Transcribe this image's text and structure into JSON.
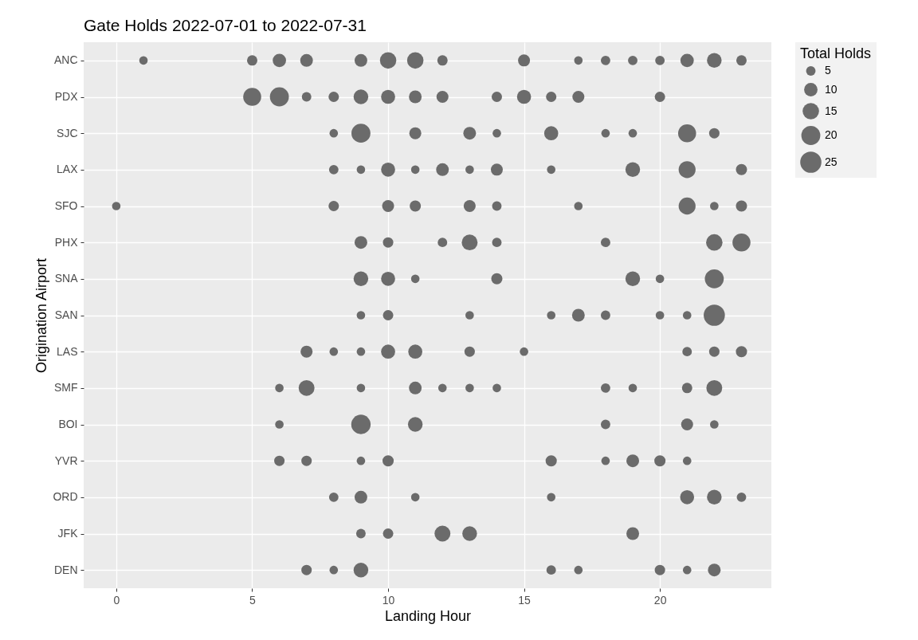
{
  "chart_data": {
    "type": "bubble",
    "orientation": "horizontal",
    "title": "Gate Holds 2022-07-01 to 2022-07-31",
    "xlabel": "Landing Hour",
    "ylabel": "Origination Airport",
    "legend_title": "Total Holds",
    "xlim": [
      -1.2,
      24.1
    ],
    "xticks": [
      0,
      5,
      10,
      15,
      20
    ],
    "grid": true,
    "size_legend": [
      5,
      10,
      15,
      20,
      25
    ],
    "categories": [
      "ANC",
      "PDX",
      "SJC",
      "LAX",
      "SFO",
      "PHX",
      "SNA",
      "SAN",
      "LAS",
      "SMF",
      "BOI",
      "YVR",
      "ORD",
      "JFK",
      "DEN"
    ],
    "series": [
      {
        "color": "#6b6b6b",
        "values": [
          1,
          5,
          6,
          7,
          9,
          10,
          11,
          12,
          15,
          17,
          18,
          19,
          20,
          21,
          22,
          23,
          5,
          6,
          7,
          8,
          9,
          10,
          11,
          12,
          14,
          15,
          16,
          17,
          20,
          8,
          9,
          11,
          13,
          14,
          16,
          18,
          19,
          21,
          22,
          8,
          9,
          10,
          11,
          12,
          13,
          14,
          16,
          19,
          21,
          23,
          0,
          8,
          10,
          11,
          13,
          14,
          17,
          21,
          22,
          23,
          9,
          10,
          12,
          13,
          14,
          18,
          22,
          23,
          9,
          10,
          11,
          14,
          19,
          20,
          22,
          9,
          10,
          13,
          16,
          17,
          18,
          20,
          21,
          22,
          7,
          8,
          9,
          10,
          11,
          13,
          15,
          21,
          22,
          23,
          6,
          7,
          9,
          11,
          12,
          13,
          14,
          18,
          19,
          21,
          22,
          6,
          9,
          11,
          18,
          21,
          22,
          6,
          7,
          9,
          10,
          16,
          18,
          19,
          20,
          21,
          8,
          9,
          11,
          16,
          21,
          22,
          23,
          9,
          10,
          12,
          13,
          19,
          7,
          8,
          9,
          16,
          17,
          20,
          21,
          22
        ],
        "x": [
          "ANC",
          "ANC",
          "ANC",
          "ANC",
          "ANC",
          "ANC",
          "ANC",
          "ANC",
          "ANC",
          "ANC",
          "ANC",
          "ANC",
          "ANC",
          "ANC",
          "ANC",
          "ANC",
          "PDX",
          "PDX",
          "PDX",
          "PDX",
          "PDX",
          "PDX",
          "PDX",
          "PDX",
          "PDX",
          "PDX",
          "PDX",
          "PDX",
          "PDX",
          "SJC",
          "SJC",
          "SJC",
          "SJC",
          "SJC",
          "SJC",
          "SJC",
          "SJC",
          "SJC",
          "SJC",
          "LAX",
          "LAX",
          "LAX",
          "LAX",
          "LAX",
          "LAX",
          "LAX",
          "LAX",
          "LAX",
          "LAX",
          "LAX",
          "SFO",
          "SFO",
          "SFO",
          "SFO",
          "SFO",
          "SFO",
          "SFO",
          "SFO",
          "SFO",
          "SFO",
          "PHX",
          "PHX",
          "PHX",
          "PHX",
          "PHX",
          "PHX",
          "PHX",
          "PHX",
          "SNA",
          "SNA",
          "SNA",
          "SNA",
          "SNA",
          "SNA",
          "SNA",
          "SAN",
          "SAN",
          "SAN",
          "SAN",
          "SAN",
          "SAN",
          "SAN",
          "SAN",
          "SAN",
          "LAS",
          "LAS",
          "LAS",
          "LAS",
          "LAS",
          "LAS",
          "LAS",
          "LAS",
          "LAS",
          "LAS",
          "SMF",
          "SMF",
          "SMF",
          "SMF",
          "SMF",
          "SMF",
          "SMF",
          "SMF",
          "SMF",
          "SMF",
          "SMF",
          "BOI",
          "BOI",
          "BOI",
          "BOI",
          "BOI",
          "BOI",
          "YVR",
          "YVR",
          "YVR",
          "YVR",
          "YVR",
          "YVR",
          "YVR",
          "YVR",
          "YVR",
          "ORD",
          "ORD",
          "ORD",
          "ORD",
          "ORD",
          "ORD",
          "ORD",
          "JFK",
          "JFK",
          "JFK",
          "JFK",
          "JFK",
          "DEN",
          "DEN",
          "DEN",
          "DEN",
          "DEN",
          "DEN",
          "DEN",
          "DEN"
        ],
        "sizes": [
          4,
          6,
          10,
          9,
          9,
          15,
          15,
          6,
          8,
          4,
          5,
          5,
          5,
          10,
          12,
          6,
          18,
          20,
          5,
          6,
          12,
          11,
          9,
          8,
          6,
          11,
          6,
          8,
          6,
          4,
          20,
          8,
          9,
          4,
          11,
          4,
          4,
          18,
          6,
          5,
          4,
          11,
          4,
          9,
          4,
          8,
          4,
          12,
          16,
          7,
          4,
          6,
          8,
          7,
          8,
          5,
          4,
          16,
          4,
          7,
          9,
          6,
          5,
          14,
          5,
          5,
          15,
          18,
          12,
          11,
          4,
          7,
          12,
          4,
          20,
          4,
          6,
          4,
          4,
          9,
          5,
          4,
          4,
          25,
          8,
          4,
          4,
          11,
          11,
          6,
          4,
          5,
          6,
          7,
          4,
          14,
          4,
          9,
          4,
          4,
          4,
          5,
          4,
          6,
          14,
          4,
          21,
          12,
          5,
          8,
          4,
          6,
          6,
          4,
          7,
          7,
          4,
          9,
          7,
          4,
          5,
          9,
          4,
          4,
          11,
          12,
          5,
          5,
          6,
          14,
          12,
          9,
          6,
          4,
          12,
          5,
          4,
          6,
          4,
          9
        ]
      }
    ]
  }
}
